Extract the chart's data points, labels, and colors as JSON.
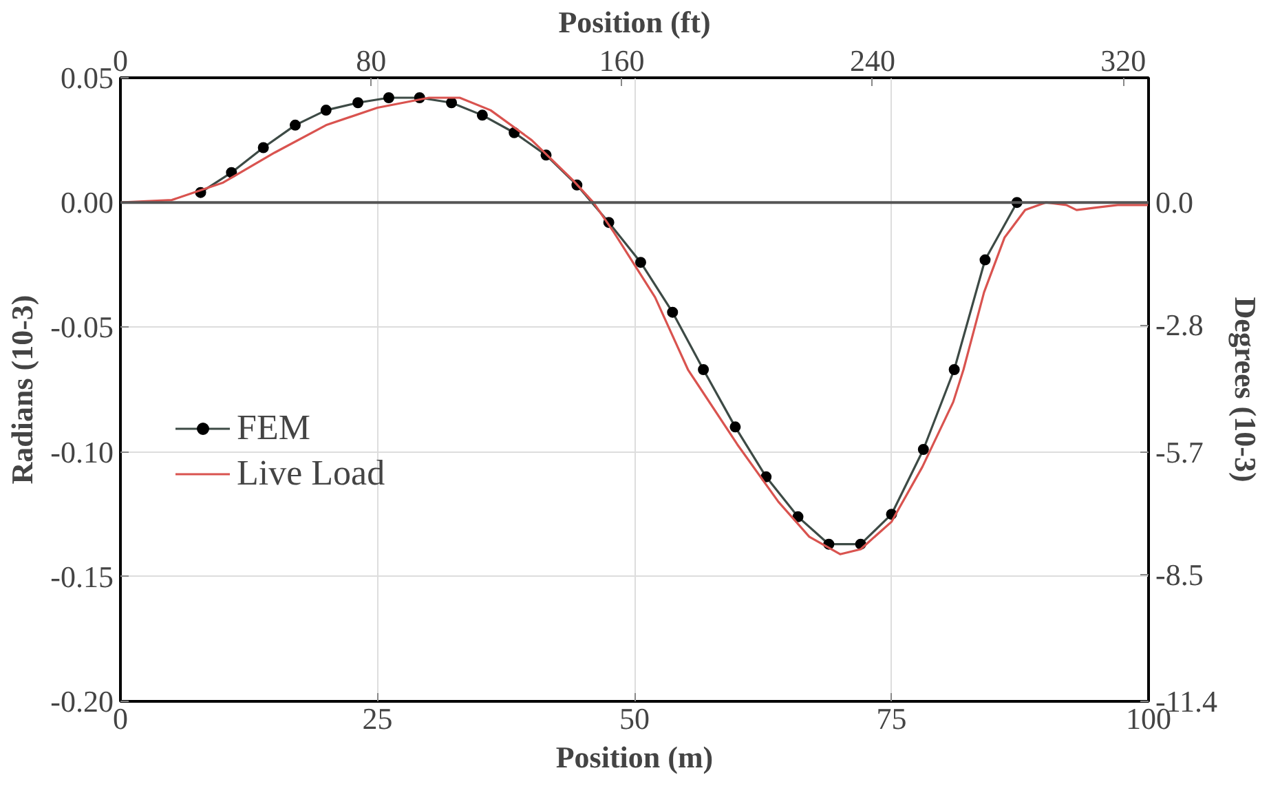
{
  "chart_data": {
    "type": "line",
    "xlabel": "Position (m)",
    "ylabel": "Radians (10-3)",
    "y2label": "Degrees (10-3)",
    "x2label": "Position (ft)",
    "xlim": [
      0,
      100
    ],
    "xticks": [
      0,
      25,
      50,
      75,
      100
    ],
    "ylim": [
      -0.2,
      0.05
    ],
    "yticks": [
      {
        "value": -0.2,
        "label": "-0.20"
      },
      {
        "value": -0.15,
        "label": "-0.15"
      },
      {
        "value": -0.1,
        "label": "-0.10"
      },
      {
        "value": -0.05,
        "label": "-0.05"
      },
      {
        "value": 0,
        "label": "0.00"
      },
      {
        "value": 0.05,
        "label": "0.05"
      }
    ],
    "x2lim": [
      0,
      328.08
    ],
    "x2ticks": [
      0,
      80,
      160,
      240,
      320
    ],
    "y2lim": [
      -11.4,
      2.85
    ],
    "y2ticks": [
      -11.4,
      -8.5,
      -5.7,
      -2.8,
      {
        "value": 0,
        "label": "0.0"
      }
    ],
    "grid": true,
    "legend": "left",
    "ref_lines": [
      {
        "axis": "y",
        "value": 0,
        "color": "#555555"
      }
    ],
    "series": [
      {
        "name": "FEM",
        "color": "#3d4a45",
        "marker": "circle",
        "x": [
          7.8,
          10.8,
          13.9,
          17.0,
          20.0,
          23.1,
          26.1,
          29.1,
          32.2,
          35.2,
          38.3,
          41.4,
          44.4,
          47.5,
          50.6,
          53.7,
          56.7,
          59.8,
          62.8,
          65.9,
          68.9,
          72.0,
          75.0,
          78.1,
          81.1,
          84.1,
          87.2
        ],
        "values": [
          0.004,
          0.012,
          0.022,
          0.031,
          0.037,
          0.04,
          0.042,
          0.042,
          0.04,
          0.035,
          0.028,
          0.019,
          0.007,
          -0.008,
          -0.024,
          -0.044,
          -0.067,
          -0.09,
          -0.11,
          -0.126,
          -0.137,
          -0.137,
          -0.125,
          -0.099,
          -0.067,
          -0.023,
          0.0
        ]
      },
      {
        "name": "Live Load",
        "color": "#d9534f",
        "marker": "none",
        "x": [
          0,
          5,
          10,
          15,
          20,
          25,
          30,
          33,
          36,
          40,
          44,
          46,
          48,
          52,
          55.2,
          60,
          64,
          67,
          70,
          72,
          75,
          78,
          81,
          82,
          84,
          86,
          88,
          90,
          92,
          93,
          95,
          97,
          100
        ],
        "values": [
          0,
          0.001,
          0.008,
          0.02,
          0.031,
          0.038,
          0.042,
          0.042,
          0.037,
          0.025,
          0.009,
          0.0,
          -0.012,
          -0.038,
          -0.067,
          -0.097,
          -0.12,
          -0.134,
          -0.141,
          -0.139,
          -0.128,
          -0.106,
          -0.08,
          -0.067,
          -0.036,
          -0.014,
          -0.003,
          0.0,
          -0.001,
          -0.003,
          -0.002,
          -0.001,
          -0.001
        ]
      }
    ]
  }
}
